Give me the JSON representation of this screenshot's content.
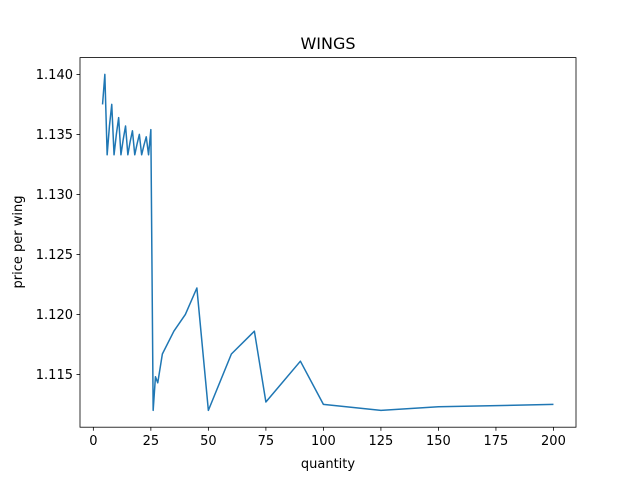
{
  "chart_data": {
    "type": "line",
    "title": "WINGS",
    "xlabel": "quantity",
    "ylabel": "price per wing",
    "x": [
      4,
      5,
      6,
      7,
      8,
      9,
      10,
      11,
      12,
      13,
      14,
      15,
      16,
      17,
      18,
      19,
      20,
      21,
      22,
      23,
      24,
      25,
      26,
      27,
      28,
      30,
      35,
      40,
      45,
      50,
      60,
      70,
      75,
      90,
      100,
      125,
      150,
      200
    ],
    "series": [
      {
        "color": "#1f77b4",
        "values": [
          1.1375,
          1.14,
          1.1333,
          1.1357,
          1.1375,
          1.1333,
          1.135,
          1.1364,
          1.1333,
          1.1346,
          1.1357,
          1.1333,
          1.1344,
          1.1353,
          1.1333,
          1.1342,
          1.135,
          1.1333,
          1.1341,
          1.1348,
          1.1333,
          1.1354,
          1.112,
          1.1148,
          1.1143,
          1.1167,
          1.1186,
          1.12,
          1.1222,
          1.112,
          1.1167,
          1.1186,
          1.1127,
          1.1161,
          1.1125,
          1.112,
          1.1123,
          1.1125
        ]
      }
    ],
    "xlim": [
      -5.8,
      209.8
    ],
    "ylim": [
      1.1106,
      1.1414
    ],
    "xticks": [
      0,
      25,
      50,
      75,
      100,
      125,
      150,
      175,
      200
    ],
    "yticks": [
      1.115,
      {
        "value": 1.12,
        "label": "1.120"
      },
      1.125,
      {
        "value": 1.13,
        "label": "1.130"
      },
      1.135,
      {
        "value": 1.14,
        "label": "1.140"
      }
    ]
  }
}
